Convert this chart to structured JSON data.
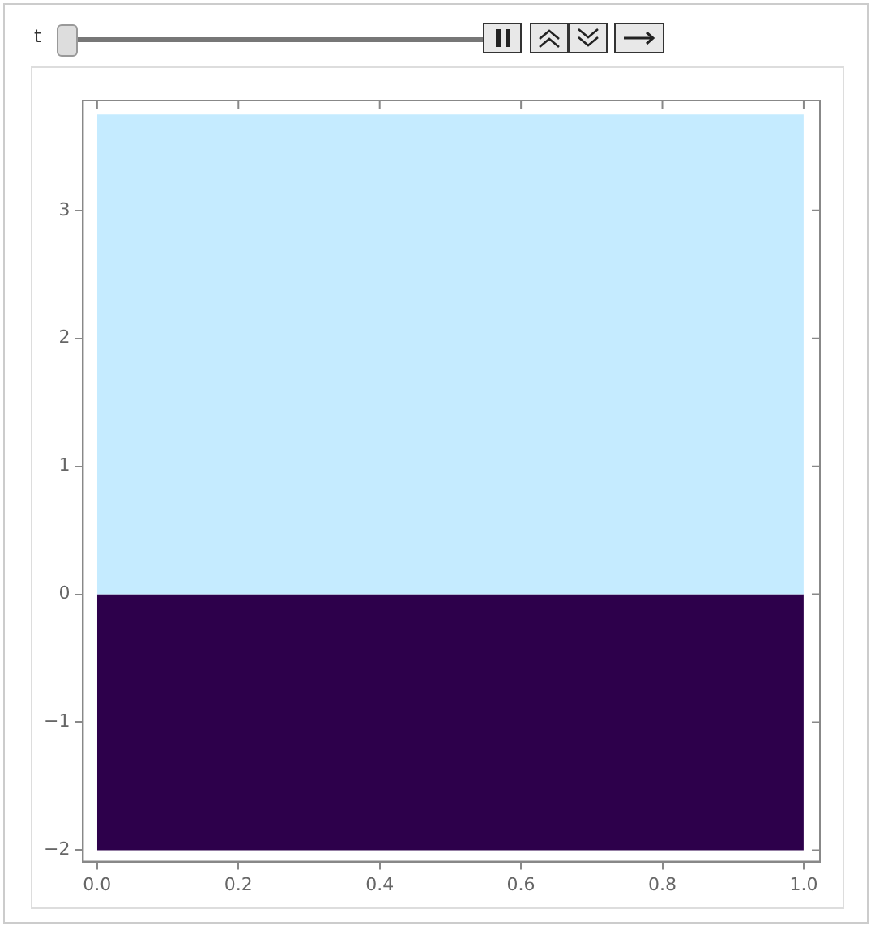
{
  "chart_data": {
    "type": "area",
    "x": [
      0,
      1
    ],
    "series": [
      {
        "color": "#c5ebff",
        "values": [
          3.75,
          3.75
        ]
      },
      {
        "color": "#2d004b",
        "values": [
          -2,
          -2
        ]
      }
    ],
    "xlim": [
      -0.02,
      1.023
    ],
    "ylim": [
      -2.09,
      3.86
    ],
    "xticks": [
      {
        "value": 0,
        "label": "0.0"
      },
      {
        "value": 0.2,
        "label": "0.2"
      },
      {
        "value": 0.4,
        "label": "0.4"
      },
      {
        "value": 0.6,
        "label": "0.6"
      },
      {
        "value": 0.8,
        "label": "0.8"
      },
      {
        "value": 1,
        "label": "1.0"
      }
    ],
    "yticks": [
      {
        "value": -2,
        "label": "−2"
      },
      {
        "value": -1,
        "label": "−1"
      },
      0,
      1,
      2,
      3
    ],
    "grid": false,
    "legend": false,
    "annotations": [
      "t"
    ]
  }
}
